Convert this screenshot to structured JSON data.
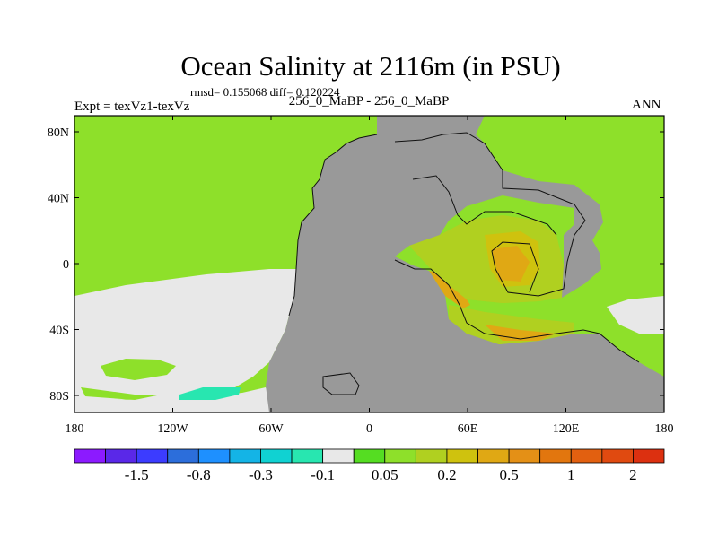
{
  "header": {
    "title": "Ocean Salinity at 2116m (in PSU)",
    "stats": "rmsd= 0.155068 diff= 0.120224",
    "experiment": "Expt = texVz1-texVz",
    "period": "256_0_MaBP - 256_0_MaBP",
    "season": "ANN"
  },
  "chart_data": {
    "type": "heatmap",
    "title": "Ocean Salinity at 2116m (in PSU)",
    "xlabel": "",
    "ylabel": "",
    "xlim": [
      -180,
      180
    ],
    "ylim": [
      -90,
      90
    ],
    "x_ticks": [
      {
        "value": -180,
        "label": "180"
      },
      {
        "value": -120,
        "label": "120W"
      },
      {
        "value": -60,
        "label": "60W"
      },
      {
        "value": 0,
        "label": "0"
      },
      {
        "value": 60,
        "label": "60E"
      },
      {
        "value": 120,
        "label": "120E"
      },
      {
        "value": 180,
        "label": "180"
      }
    ],
    "y_ticks": [
      {
        "value": 80,
        "label": "80N"
      },
      {
        "value": 40,
        "label": "40N"
      },
      {
        "value": 0,
        "label": "0"
      },
      {
        "value": -40,
        "label": "40S"
      },
      {
        "value": -80,
        "label": "80S"
      }
    ],
    "colorbar": {
      "colors": [
        "#8c1aff",
        "#5a28e8",
        "#3c3cff",
        "#2c6edb",
        "#1e90ff",
        "#14b4e6",
        "#10d2d2",
        "#28e6b0",
        "#e8e8e8",
        "#55dd22",
        "#8ee02a",
        "#b0d020",
        "#cfc20e",
        "#e0a814",
        "#e49016",
        "#e2760e",
        "#e26010",
        "#e04a10",
        "#dc3010"
      ],
      "labels": [
        "-1.5",
        "-0.8",
        "-0.3",
        "-0.1",
        "0.05",
        "0.2",
        "0.5",
        "1",
        "2"
      ]
    },
    "land_color": "#999999",
    "legend": "colorbar-bottom"
  }
}
